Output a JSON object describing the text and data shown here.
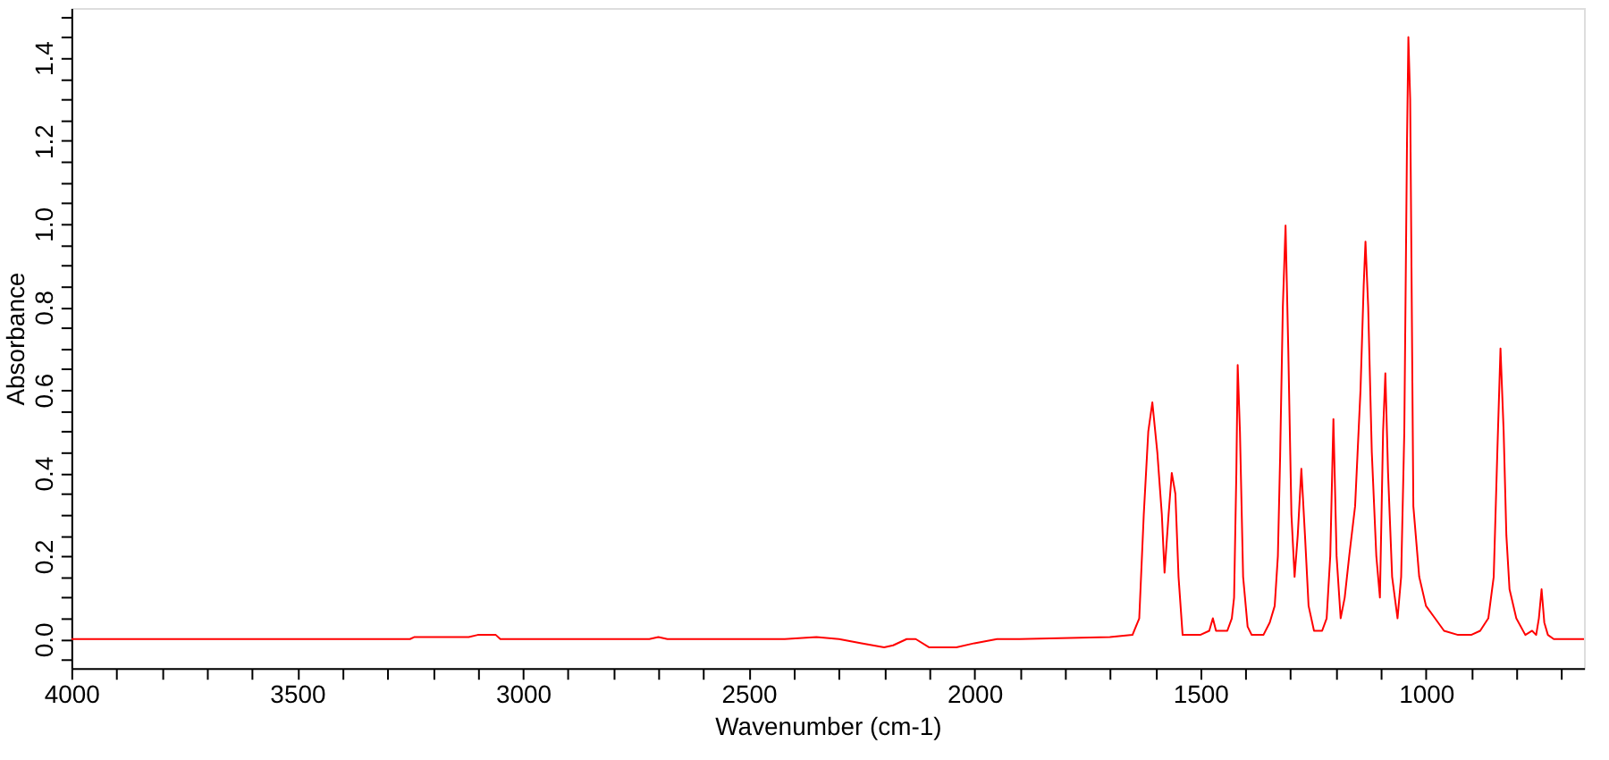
{
  "chart_data": {
    "type": "line",
    "xlabel": "Wavenumber (cm-1)",
    "ylabel": "Absorbance",
    "x": [
      4000,
      3250,
      3240,
      3120,
      3100,
      3060,
      3050,
      2720,
      2700,
      2680,
      2560,
      2420,
      2350,
      2300,
      2250,
      2200,
      2180,
      2150,
      2130,
      2100,
      2060,
      2040,
      2000,
      1950,
      1900,
      1700,
      1650,
      1635,
      1625,
      1615,
      1606,
      1595,
      1585,
      1579,
      1570,
      1563,
      1555,
      1548,
      1539,
      1500,
      1480,
      1472,
      1465,
      1440,
      1430,
      1425,
      1420,
      1417,
      1412,
      1405,
      1395,
      1386,
      1360,
      1346,
      1335,
      1328,
      1323,
      1317,
      1311,
      1305,
      1298,
      1291,
      1284,
      1276,
      1268,
      1260,
      1248,
      1230,
      1220,
      1212,
      1205,
      1198,
      1189,
      1180,
      1170,
      1157,
      1145,
      1138,
      1134,
      1128,
      1120,
      1110,
      1102,
      1095,
      1090,
      1084,
      1075,
      1063,
      1055,
      1048,
      1042,
      1039,
      1035,
      1028,
      1015,
      1000,
      980,
      960,
      929,
      900,
      880,
      862,
      850,
      842,
      835,
      828,
      822,
      815,
      800,
      780,
      765,
      756,
      750,
      744,
      738,
      730,
      717,
      690,
      650
    ],
    "series": [
      {
        "color": "#ff0000",
        "values": [
          0.0,
          0.0,
          0.005,
          0.005,
          0.01,
          0.01,
          0.0,
          0.0,
          0.005,
          0.0,
          0.0,
          0.0,
          0.005,
          0.0,
          -0.01,
          -0.02,
          -0.015,
          0.0,
          0.0,
          -0.02,
          -0.02,
          -0.02,
          -0.01,
          0.0,
          0.0,
          0.005,
          0.01,
          0.05,
          0.3,
          0.5,
          0.57,
          0.45,
          0.3,
          0.16,
          0.3,
          0.4,
          0.35,
          0.15,
          0.01,
          0.01,
          0.02,
          0.05,
          0.02,
          0.02,
          0.05,
          0.1,
          0.4,
          0.66,
          0.5,
          0.15,
          0.03,
          0.01,
          0.01,
          0.04,
          0.08,
          0.2,
          0.44,
          0.8,
          0.996,
          0.7,
          0.3,
          0.15,
          0.25,
          0.41,
          0.25,
          0.08,
          0.02,
          0.02,
          0.05,
          0.2,
          0.53,
          0.2,
          0.05,
          0.1,
          0.2,
          0.32,
          0.6,
          0.85,
          0.957,
          0.8,
          0.45,
          0.2,
          0.1,
          0.5,
          0.64,
          0.4,
          0.15,
          0.05,
          0.15,
          0.5,
          1.2,
          1.45,
          1.3,
          0.32,
          0.15,
          0.08,
          0.05,
          0.02,
          0.01,
          0.01,
          0.02,
          0.05,
          0.15,
          0.45,
          0.7,
          0.5,
          0.25,
          0.12,
          0.05,
          0.01,
          0.02,
          0.01,
          0.05,
          0.12,
          0.04,
          0.01,
          0.0,
          0.0,
          0.0
        ]
      }
    ],
    "xlim": [
      4000,
      650
    ],
    "xticks": [
      4000,
      {
        "value": 3900,
        "label": null
      },
      {
        "value": 3800,
        "label": null
      },
      {
        "value": 3700,
        "label": null
      },
      {
        "value": 3600,
        "label": null
      },
      3500,
      {
        "value": 3400,
        "label": null
      },
      {
        "value": 3300,
        "label": null
      },
      {
        "value": 3200,
        "label": null
      },
      {
        "value": 3100,
        "label": null
      },
      3000,
      {
        "value": 2900,
        "label": null
      },
      {
        "value": 2800,
        "label": null
      },
      {
        "value": 2700,
        "label": null
      },
      {
        "value": 2600,
        "label": null
      },
      2500,
      {
        "value": 2400,
        "label": null
      },
      {
        "value": 2300,
        "label": null
      },
      {
        "value": 2200,
        "label": null
      },
      {
        "value": 2100,
        "label": null
      },
      2000,
      {
        "value": 1900,
        "label": null
      },
      {
        "value": 1800,
        "label": null
      },
      {
        "value": 1700,
        "label": null
      },
      {
        "value": 1600,
        "label": null
      },
      1500,
      {
        "value": 1400,
        "label": null
      },
      {
        "value": 1300,
        "label": null
      },
      {
        "value": 1200,
        "label": null
      },
      {
        "value": 1100,
        "label": null
      },
      1000,
      {
        "value": 900,
        "label": null
      },
      {
        "value": 800,
        "label": null
      },
      {
        "value": 700,
        "label": null
      }
    ],
    "ylim": [
      -0.07,
      1.52
    ],
    "yticks": [
      {
        "value": -0.05,
        "label": null
      },
      {
        "value": 0,
        "label": "0.0"
      },
      {
        "value": 0.05,
        "label": null
      },
      {
        "value": 0.1,
        "label": null
      },
      {
        "value": 0.15,
        "label": null
      },
      {
        "value": 0.2,
        "label": "0.2"
      },
      {
        "value": 0.25,
        "label": null
      },
      {
        "value": 0.3,
        "label": null
      },
      {
        "value": 0.35,
        "label": null
      },
      {
        "value": 0.4,
        "label": "0.4"
      },
      {
        "value": 0.45,
        "label": null
      },
      {
        "value": 0.5,
        "label": null
      },
      {
        "value": 0.55,
        "label": null
      },
      {
        "value": 0.6,
        "label": "0.6"
      },
      {
        "value": 0.65,
        "label": null
      },
      {
        "value": 0.7,
        "label": null
      },
      {
        "value": 0.75,
        "label": null
      },
      {
        "value": 0.8,
        "label": "0.8"
      },
      {
        "value": 0.85,
        "label": null
      },
      {
        "value": 0.9,
        "label": null
      },
      {
        "value": 0.95,
        "label": null
      },
      {
        "value": 1.0,
        "label": "1.0"
      },
      {
        "value": 1.05,
        "label": null
      },
      {
        "value": 1.1,
        "label": null
      },
      {
        "value": 1.15,
        "label": null
      },
      {
        "value": 1.2,
        "label": "1.2"
      },
      {
        "value": 1.25,
        "label": null
      },
      {
        "value": 1.3,
        "label": null
      },
      {
        "value": 1.35,
        "label": null
      },
      {
        "value": 1.4,
        "label": "1.4"
      },
      {
        "value": 1.45,
        "label": null
      },
      {
        "value": 1.5,
        "label": null
      }
    ],
    "grid": false,
    "legend": false,
    "line_style": "solid",
    "marker": "none"
  }
}
